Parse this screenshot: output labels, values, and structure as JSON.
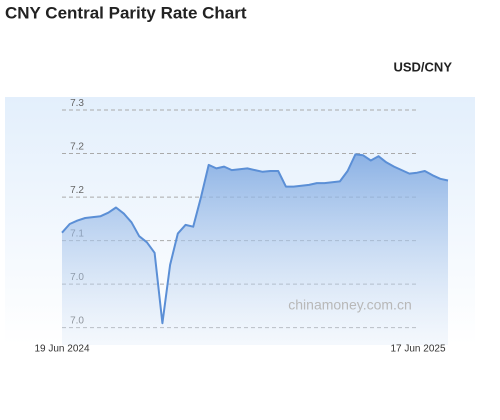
{
  "chart_data": {
    "type": "line",
    "title": "CNY Central Parity Rate Chart",
    "subtitle": "USD/CNY",
    "watermark": "chinamoney.com.cn",
    "categories": [
      "19 Jun 2024",
      null,
      null,
      null,
      null,
      null,
      null,
      null,
      null,
      null,
      null,
      null,
      null,
      null,
      null,
      null,
      null,
      null,
      null,
      null,
      null,
      null,
      null,
      null,
      null,
      null,
      null,
      null,
      null,
      null,
      null,
      null,
      null,
      null,
      null,
      null,
      null,
      null,
      null,
      null,
      null,
      null,
      null,
      null,
      null,
      null,
      null,
      null,
      null,
      null,
      "17 Jun 2025"
    ],
    "series": [
      {
        "name": "USD/CNY",
        "color": "#5b8fd6",
        "values": [
          7.109,
          7.119,
          7.123,
          7.126,
          7.127,
          7.128,
          7.132,
          7.138,
          7.131,
          7.121,
          7.105,
          7.098,
          7.086,
          7.005,
          7.072,
          7.108,
          7.118,
          7.116,
          7.15,
          7.187,
          7.183,
          7.185,
          7.181,
          7.182,
          7.183,
          7.181,
          7.179,
          7.18,
          7.18,
          7.162,
          7.162,
          7.163,
          7.164,
          7.166,
          7.166,
          7.167,
          7.168,
          7.18,
          7.199,
          7.198,
          7.192,
          7.197,
          7.19,
          7.185,
          7.181,
          7.177,
          7.178,
          7.18,
          7.175,
          7.171,
          7.169
        ]
      }
    ],
    "ylim": [
      6.98,
      7.265
    ],
    "yticks": [
      {
        "value": 7.0,
        "label": "7.0"
      },
      {
        "value": 7.05,
        "label": "7.0"
      },
      {
        "value": 7.1,
        "label": "7.1"
      },
      {
        "value": 7.15,
        "label": "7.2"
      },
      {
        "value": 7.2,
        "label": "7.2"
      },
      {
        "value": 7.25,
        "label": "7.3"
      }
    ],
    "grid": true
  }
}
